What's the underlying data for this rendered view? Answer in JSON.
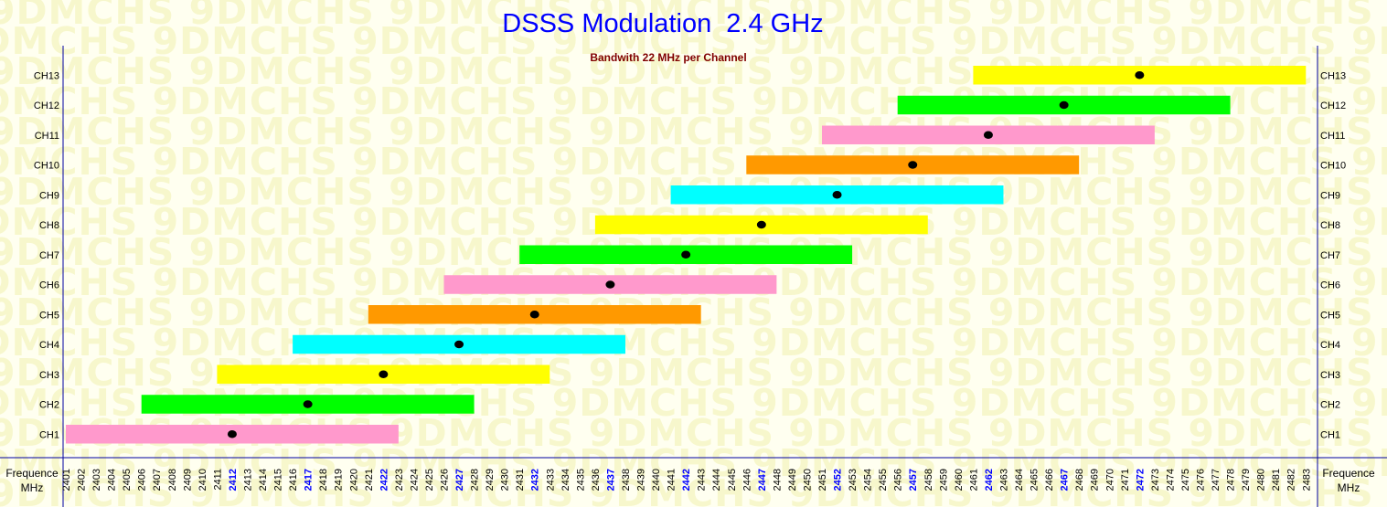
{
  "watermark_text": "9DMCHS",
  "chart_data": {
    "type": "bar",
    "orientation": "horizontal-range",
    "title": "DSSS Modulation  2.4 GHz",
    "subtitle": "Bandwith 22 MHz per Channel",
    "xlabel": [
      "Frequence",
      "MHz"
    ],
    "xlim": [
      2401,
      2483
    ],
    "x_ticks": [
      2401,
      2402,
      2403,
      2404,
      2405,
      2406,
      2407,
      2408,
      2409,
      2410,
      2411,
      2412,
      2413,
      2414,
      2415,
      2416,
      2417,
      2418,
      2419,
      2420,
      2421,
      2422,
      2423,
      2424,
      2425,
      2426,
      2427,
      2428,
      2429,
      2430,
      2431,
      2432,
      2433,
      2434,
      2435,
      2436,
      2437,
      2438,
      2439,
      2440,
      2441,
      2442,
      2443,
      2444,
      2445,
      2446,
      2447,
      2448,
      2449,
      2450,
      2451,
      2452,
      2453,
      2454,
      2455,
      2456,
      2457,
      2458,
      2459,
      2460,
      2461,
      2462,
      2463,
      2464,
      2465,
      2466,
      2467,
      2468,
      2469,
      2470,
      2471,
      2472,
      2473,
      2474,
      2475,
      2476,
      2477,
      2478,
      2479,
      2480,
      2481,
      2482,
      2483
    ],
    "highlighted_ticks": [
      2412,
      2417,
      2422,
      2427,
      2432,
      2437,
      2442,
      2447,
      2452,
      2457,
      2462,
      2467,
      2472
    ],
    "grid": false,
    "channels": [
      {
        "name": "CH1",
        "start": 2401,
        "end": 2423,
        "center": 2412,
        "color": "#ff99cc"
      },
      {
        "name": "CH2",
        "start": 2406,
        "end": 2428,
        "center": 2417,
        "color": "#00ff00"
      },
      {
        "name": "CH3",
        "start": 2411,
        "end": 2433,
        "center": 2422,
        "color": "#ffff00"
      },
      {
        "name": "CH4",
        "start": 2416,
        "end": 2438,
        "center": 2427,
        "color": "#00ffff"
      },
      {
        "name": "CH5",
        "start": 2421,
        "end": 2443,
        "center": 2432,
        "color": "#ff9900"
      },
      {
        "name": "CH6",
        "start": 2426,
        "end": 2448,
        "center": 2437,
        "color": "#ff99cc"
      },
      {
        "name": "CH7",
        "start": 2431,
        "end": 2453,
        "center": 2442,
        "color": "#00ff00"
      },
      {
        "name": "CH8",
        "start": 2436,
        "end": 2458,
        "center": 2447,
        "color": "#ffff00"
      },
      {
        "name": "CH9",
        "start": 2441,
        "end": 2463,
        "center": 2452,
        "color": "#00ffff"
      },
      {
        "name": "CH10",
        "start": 2446,
        "end": 2468,
        "center": 2457,
        "color": "#ff9900"
      },
      {
        "name": "CH11",
        "start": 2451,
        "end": 2473,
        "center": 2462,
        "color": "#ff99cc"
      },
      {
        "name": "CH12",
        "start": 2456,
        "end": 2478,
        "center": 2467,
        "color": "#00ff00"
      },
      {
        "name": "CH13",
        "start": 2461,
        "end": 2483,
        "center": 2472,
        "color": "#ffff00"
      }
    ],
    "colors": {
      "axis": "#0000a0",
      "title": "#0000ff",
      "subtitle": "#800000",
      "highlight_tick": "#0000ff",
      "center_dot": "#000000"
    }
  }
}
